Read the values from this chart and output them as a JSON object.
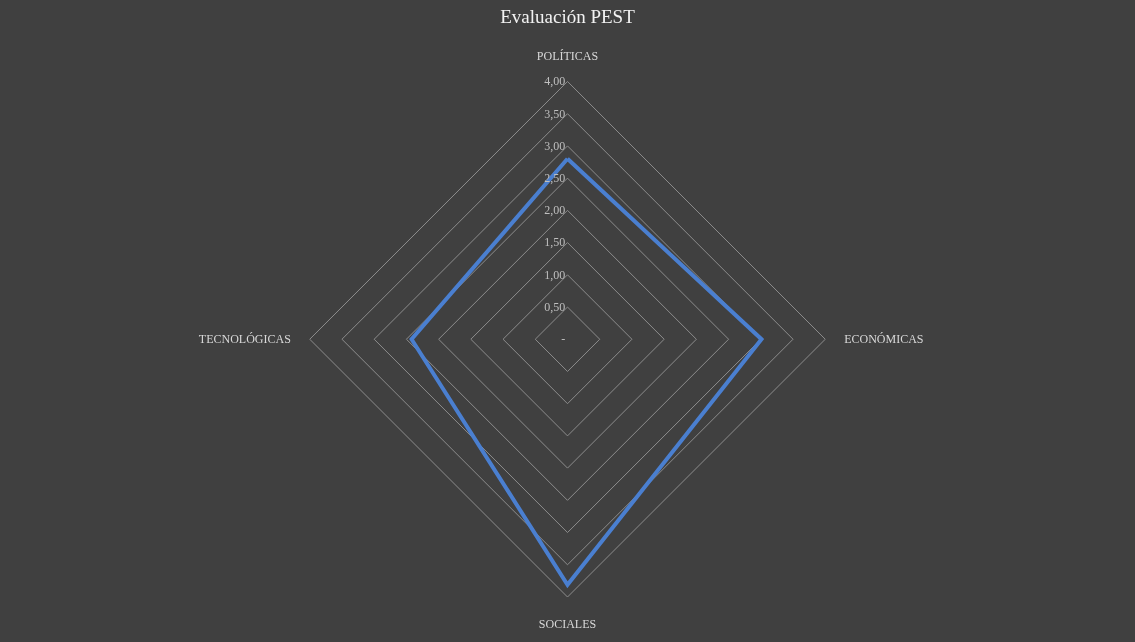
{
  "chart_data": {
    "type": "radar",
    "title": "Evaluación PEST",
    "categories": [
      "POLÍTICAS",
      "ECONÓMICAS",
      "SOCIALES",
      "TECNOLÓGICAS"
    ],
    "series": [
      {
        "color": "#4a7fd0",
        "values": [
          2.8,
          3.01,
          3.81,
          2.42
        ]
      }
    ],
    "ylim": [
      0,
      4
    ],
    "yticks": [
      {
        "value": 0,
        "label": "-"
      },
      {
        "value": 0.5,
        "label": "0,50"
      },
      {
        "value": 1,
        "label": "1,00"
      },
      {
        "value": 1.5,
        "label": "1,50"
      },
      {
        "value": 2,
        "label": "2,00"
      },
      {
        "value": 2.5,
        "label": "2,50"
      },
      {
        "value": 3,
        "label": "3,00"
      },
      {
        "value": 3.5,
        "label": "3,50"
      },
      {
        "value": 4,
        "label": "4,00"
      }
    ],
    "grid": true,
    "marker": "none",
    "line_style": "solid"
  }
}
